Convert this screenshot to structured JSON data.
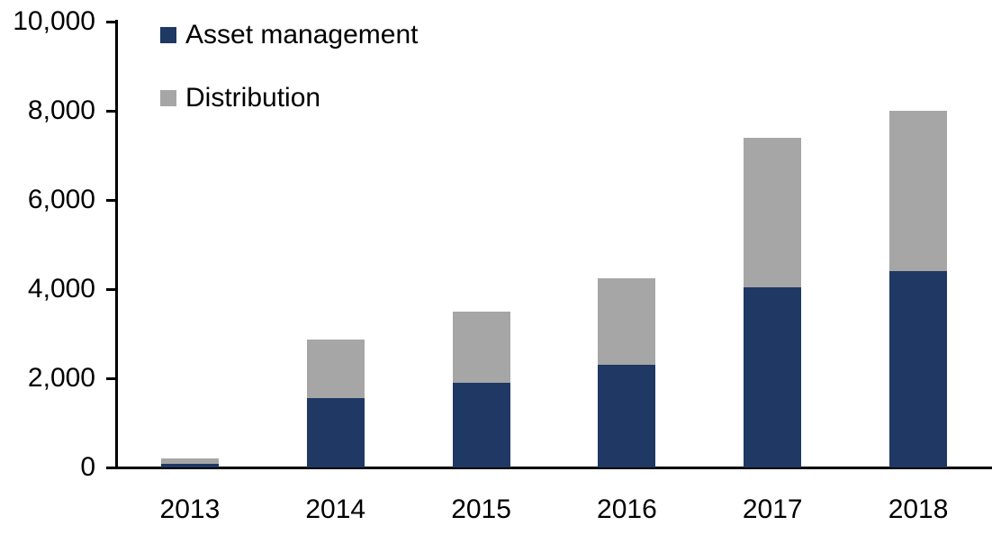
{
  "chart_data": {
    "type": "bar",
    "stacked": true,
    "title": "",
    "xlabel": "",
    "ylabel": "",
    "categories": [
      "2013",
      "2014",
      "2015",
      "2016",
      "2017",
      "2018"
    ],
    "series": [
      {
        "name": "Asset management",
        "color": "#1f3864",
        "values": [
          90,
          1550,
          1900,
          2300,
          4050,
          4400
        ]
      },
      {
        "name": "Distribution",
        "color": "#a6a6a6",
        "values": [
          120,
          1325,
          1600,
          1950,
          3350,
          3600
        ]
      }
    ],
    "totals": [
      210,
      2875,
      3500,
      4250,
      7400,
      8000
    ],
    "ylim": [
      0,
      10000
    ],
    "ytick_step": 2000,
    "ytick_labels": [
      "0",
      "2,000",
      "4,000",
      "6,000",
      "8,000",
      "10,000"
    ],
    "grid": false,
    "legend_position": "top-left"
  },
  "colors": {
    "axis": "#000000",
    "text": "#000000",
    "background": "#ffffff"
  }
}
